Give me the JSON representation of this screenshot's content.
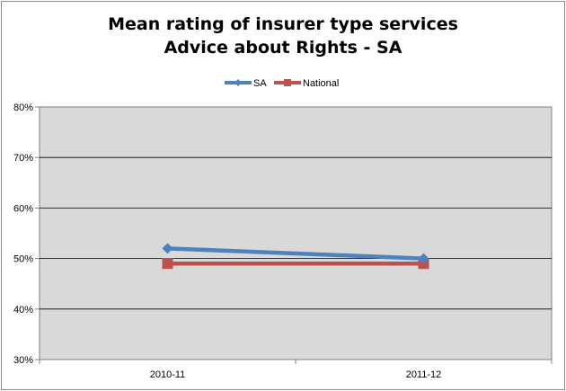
{
  "chart_data": {
    "type": "line",
    "title": "Mean rating of insurer type services",
    "subtitle": "Advice about Rights - SA",
    "categories": [
      "2010-11",
      "2011-12"
    ],
    "series": [
      {
        "name": "SA",
        "values": [
          52,
          50
        ],
        "color": "#4f81bd",
        "marker": "diamond"
      },
      {
        "name": "National",
        "values": [
          49,
          49
        ],
        "color": "#c0504d",
        "marker": "square"
      }
    ],
    "ylim": [
      30,
      80
    ],
    "yticks": [
      "30%",
      "40%",
      "50%",
      "60%",
      "70%",
      "80%"
    ],
    "ytick_values": [
      30,
      40,
      50,
      60,
      70,
      80
    ],
    "grid": true,
    "legend": "top",
    "plot_background": "#d9d9d9"
  }
}
